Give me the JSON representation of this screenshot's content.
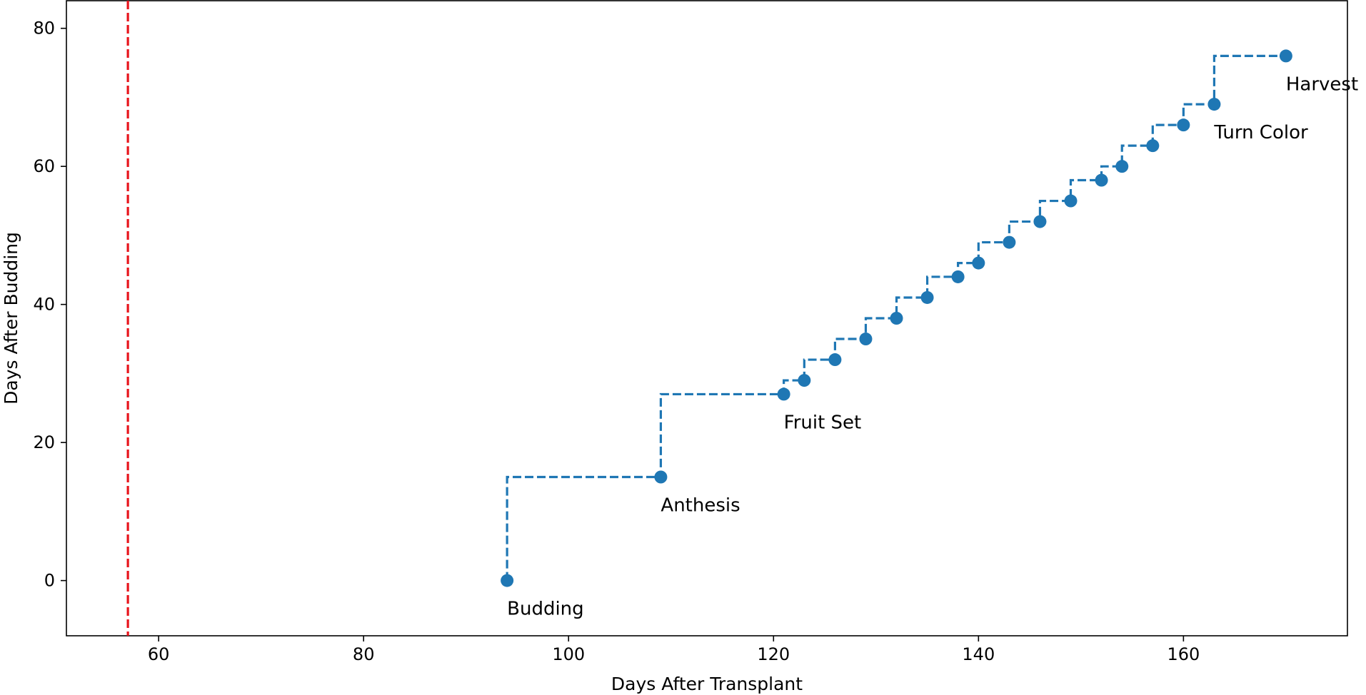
{
  "chart_data": {
    "type": "line",
    "title": "",
    "xlabel": "Days After Transplant",
    "ylabel": "Days After Budding",
    "xlim": [
      51,
      176
    ],
    "ylim": [
      -8,
      84
    ],
    "x_ticks": [
      60,
      80,
      100,
      120,
      140,
      160
    ],
    "y_ticks": [
      0,
      20,
      40,
      60,
      80
    ],
    "grid": false,
    "line_style": "steps-pre dashed with circle markers",
    "series_color": "#1f77b4",
    "series": [
      {
        "x": [
          94,
          109,
          121,
          123,
          126,
          129,
          132,
          135,
          138,
          140,
          143,
          146,
          149,
          152,
          154,
          157,
          160,
          163,
          170
        ],
        "y": [
          0,
          15,
          27,
          29,
          32,
          35,
          38,
          41,
          44,
          46,
          49,
          52,
          55,
          58,
          60,
          63,
          66,
          69,
          76
        ]
      }
    ],
    "vertical_line": {
      "x": 57,
      "color": "#e8141c",
      "style": "dashed"
    },
    "annotations": [
      {
        "text": "Budding",
        "x": 94,
        "y": 0
      },
      {
        "text": "Anthesis",
        "x": 109,
        "y": 15
      },
      {
        "text": "Fruit Set",
        "x": 121,
        "y": 27
      },
      {
        "text": "Turn Color",
        "x": 163,
        "y": 69
      },
      {
        "text": "Harvest",
        "x": 170,
        "y": 76
      }
    ]
  }
}
